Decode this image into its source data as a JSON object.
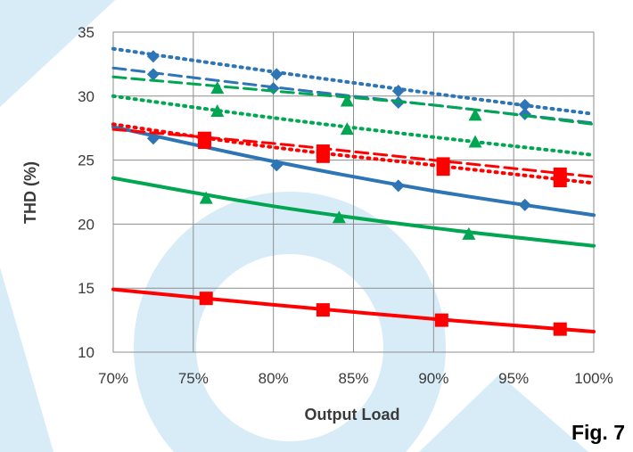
{
  "figure_label": "Fig. 7",
  "chart_data": {
    "type": "line",
    "xlabel": "Output Load",
    "ylabel": "THD (%)",
    "xlim": [
      70,
      100
    ],
    "ylim": [
      10,
      35
    ],
    "x_ticks": [
      "70%",
      "75%",
      "80%",
      "85%",
      "90%",
      "95%",
      "100%"
    ],
    "y_ticks": [
      "10",
      "15",
      "20",
      "25",
      "30",
      "35"
    ],
    "grid": true,
    "legend": "none",
    "watermark_color": "#d8ecf8",
    "series": [
      {
        "color": "#2e75b6",
        "style": "dotted",
        "marker": "diamond",
        "curve": [
          [
            70,
            33.7
          ],
          [
            80,
            31.9
          ],
          [
            90,
            30.2
          ],
          [
            100,
            28.6
          ]
        ],
        "points": [
          [
            72.5,
            33.1
          ],
          [
            80.2,
            31.7
          ],
          [
            87.8,
            30.4
          ],
          [
            95.7,
            29.3
          ]
        ]
      },
      {
        "color": "#2e75b6",
        "style": "dashed",
        "marker": "diamond",
        "curve": [
          [
            70,
            32.2
          ],
          [
            80,
            30.7
          ],
          [
            90,
            29.3
          ],
          [
            100,
            27.9
          ]
        ],
        "points": [
          [
            72.5,
            31.7
          ],
          [
            80.0,
            30.6
          ],
          [
            87.8,
            29.5
          ],
          [
            95.7,
            28.6
          ]
        ]
      },
      {
        "color": "#2e75b6",
        "style": "solid",
        "marker": "diamond",
        "curve": [
          [
            70,
            27.6
          ],
          [
            80,
            24.9
          ],
          [
            90,
            22.6
          ],
          [
            100,
            20.7
          ]
        ],
        "points": [
          [
            72.5,
            26.7
          ],
          [
            80.2,
            24.6
          ],
          [
            87.8,
            23.0
          ],
          [
            95.7,
            21.5
          ]
        ]
      },
      {
        "color": "#00a651",
        "style": "dashed",
        "marker": "triangle",
        "curve": [
          [
            70,
            31.5
          ],
          [
            80,
            30.4
          ],
          [
            90,
            29.3
          ],
          [
            100,
            27.8
          ]
        ],
        "points": [
          [
            76.5,
            30.6
          ],
          [
            84.6,
            29.6
          ],
          [
            92.6,
            28.5
          ]
        ]
      },
      {
        "color": "#00a651",
        "style": "dotted",
        "marker": "triangle",
        "curve": [
          [
            70,
            30.0
          ],
          [
            80,
            28.3
          ],
          [
            90,
            26.8
          ],
          [
            100,
            25.4
          ]
        ],
        "points": [
          [
            76.5,
            28.8
          ],
          [
            84.6,
            27.4
          ],
          [
            92.6,
            26.4
          ]
        ]
      },
      {
        "color": "#00a651",
        "style": "solid",
        "marker": "triangle",
        "curve": [
          [
            70,
            23.6
          ],
          [
            80,
            21.4
          ],
          [
            90,
            19.7
          ],
          [
            100,
            18.3
          ]
        ],
        "points": [
          [
            75.8,
            22.0
          ],
          [
            84.1,
            20.5
          ],
          [
            92.2,
            19.2
          ]
        ]
      },
      {
        "color": "#ff0000",
        "style": "dotted",
        "marker": "square",
        "curve": [
          [
            70,
            27.8
          ],
          [
            80,
            26.0
          ],
          [
            90,
            24.6
          ],
          [
            100,
            23.2
          ]
        ],
        "points": [
          [
            75.7,
            26.7
          ],
          [
            83.1,
            25.7
          ],
          [
            90.6,
            24.7
          ],
          [
            97.9,
            23.9
          ]
        ]
      },
      {
        "color": "#ff0000",
        "style": "dashed",
        "marker": "square",
        "curve": [
          [
            70,
            27.4
          ],
          [
            80,
            26.3
          ],
          [
            90,
            25.0
          ],
          [
            100,
            23.7
          ]
        ],
        "points": [
          [
            75.7,
            26.4
          ],
          [
            83.1,
            25.3
          ],
          [
            90.6,
            24.3
          ],
          [
            97.9,
            23.4
          ]
        ]
      },
      {
        "color": "#ff0000",
        "style": "solid",
        "marker": "square",
        "curve": [
          [
            70,
            14.9
          ],
          [
            80,
            13.7
          ],
          [
            90,
            12.6
          ],
          [
            100,
            11.6
          ]
        ],
        "points": [
          [
            75.8,
            14.2
          ],
          [
            83.1,
            13.3
          ],
          [
            90.5,
            12.5
          ],
          [
            97.9,
            11.8
          ]
        ]
      }
    ]
  }
}
